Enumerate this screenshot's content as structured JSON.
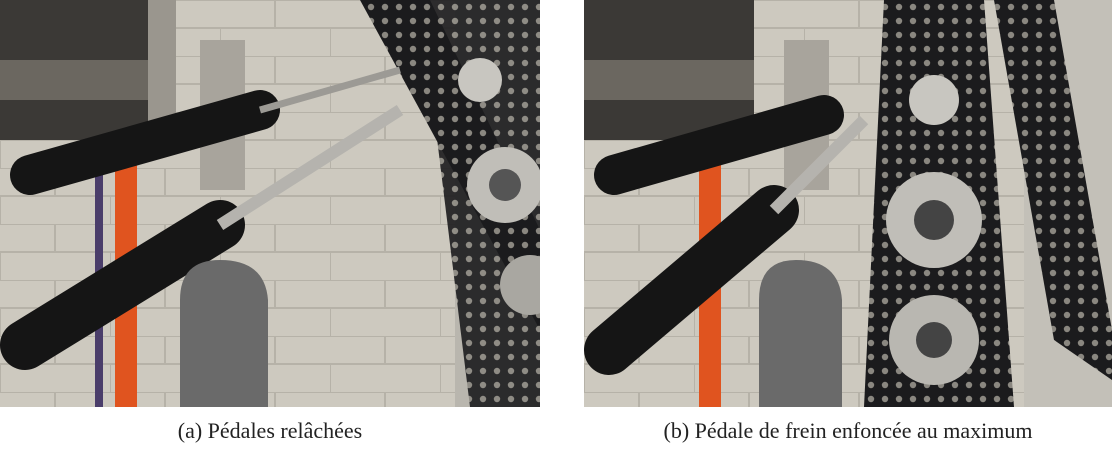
{
  "figure": {
    "subfigures": [
      {
        "caption": "(a) Pédales relâchées"
      },
      {
        "caption": "(b) Pédale de frein enfoncée au maximum"
      }
    ]
  }
}
